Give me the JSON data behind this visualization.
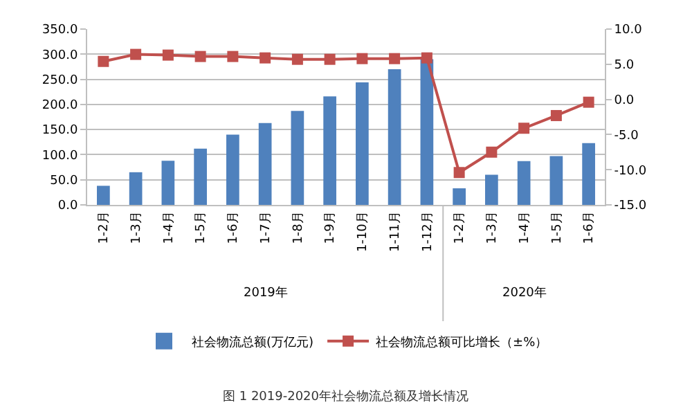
{
  "chart_data": {
    "type": "bar",
    "categories": [
      "1-2月",
      "1-3月",
      "1-4月",
      "1-5月",
      "1-6月",
      "1-7月",
      "1-8月",
      "1-9月",
      "1-10月",
      "1-11月",
      "1-12月",
      "1-2月",
      "1-3月",
      "1-4月",
      "1-5月",
      "1-6月"
    ],
    "series": [
      {
        "name": "社会物流总额(万亿元)",
        "color": "#4f81bd",
        "values": [
          38,
          65,
          88,
          112,
          140,
          163,
          187,
          216,
          244,
          270,
          290,
          33,
          60,
          87,
          97,
          123
        ]
      },
      {
        "name": "社会物流总额可比增长（±%）",
        "type": "line",
        "axis": "y2",
        "color": "#c0504d",
        "values": [
          5.4,
          6.4,
          6.3,
          6.1,
          6.1,
          5.9,
          5.7,
          5.7,
          5.8,
          5.8,
          5.9,
          -10.4,
          -7.5,
          -4.1,
          -2.3,
          -0.4
        ]
      }
    ],
    "ylim": [
      0,
      350
    ],
    "yticks": [
      {
        "value": 0,
        "label": "0.0"
      },
      {
        "value": 50,
        "label": "50.0"
      },
      {
        "value": 100,
        "label": "100.0"
      },
      {
        "value": 150,
        "label": "150.0"
      },
      {
        "value": 200,
        "label": "200.0"
      },
      {
        "value": 250,
        "label": "250.0"
      },
      {
        "value": 300,
        "label": "300.0"
      },
      {
        "value": 350,
        "label": "350.0"
      }
    ],
    "y2lim": [
      -15,
      10
    ],
    "y2ticks": [
      {
        "value": -15,
        "label": "-15.0"
      },
      {
        "value": -10,
        "label": "-10.0"
      },
      {
        "value": -5,
        "label": "-5.0"
      },
      {
        "value": 0,
        "label": "0.0"
      },
      {
        "value": 5,
        "label": "5.0"
      },
      {
        "value": 10,
        "label": "10.0"
      }
    ],
    "grid": "y",
    "legend": "bottom",
    "marker": "square",
    "annotations": [
      "2019年",
      "2020年",
      "图 1 2019-2020年社会物流总额及增长情况"
    ]
  }
}
